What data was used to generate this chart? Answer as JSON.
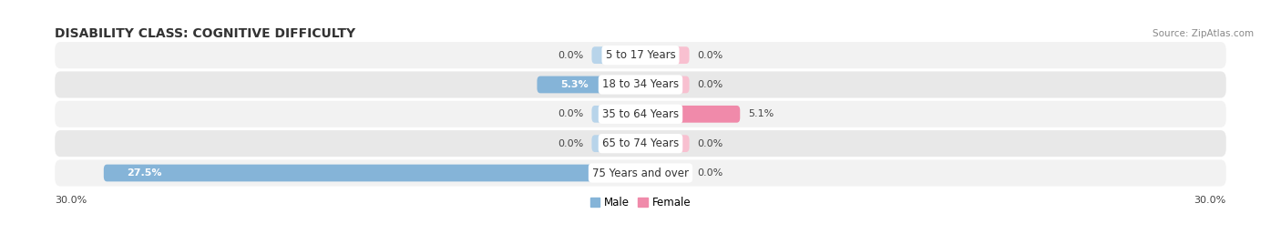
{
  "title": "DISABILITY CLASS: COGNITIVE DIFFICULTY",
  "source": "Source: ZipAtlas.com",
  "categories": [
    "5 to 17 Years",
    "18 to 34 Years",
    "35 to 64 Years",
    "65 to 74 Years",
    "75 Years and over"
  ],
  "male_values": [
    0.0,
    5.3,
    0.0,
    0.0,
    27.5
  ],
  "female_values": [
    0.0,
    0.0,
    5.1,
    0.0,
    0.0
  ],
  "male_color": "#85b4d8",
  "female_color": "#f08aaa",
  "male_stub_color": "#b8d4ea",
  "female_stub_color": "#f8c0d0",
  "row_bg_even": "#f2f2f2",
  "row_bg_odd": "#e8e8e8",
  "x_min": -30.0,
  "x_max": 30.0,
  "stub_size": 2.5,
  "axis_label_left": "30.0%",
  "axis_label_right": "30.0%",
  "title_fontsize": 10,
  "label_fontsize": 8,
  "category_fontsize": 8.5,
  "legend_fontsize": 8.5,
  "source_fontsize": 7.5
}
